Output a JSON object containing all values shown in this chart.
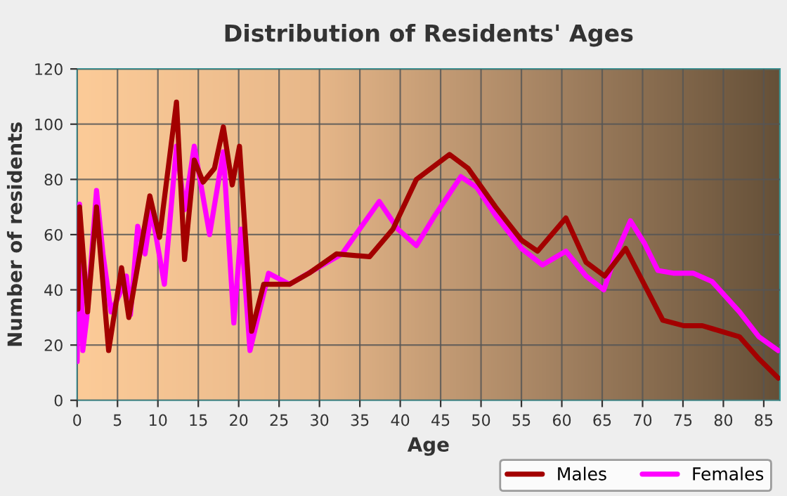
{
  "chart_data": {
    "type": "line",
    "title": "Distribution of Residents' Ages",
    "xlabel": "Age",
    "ylabel": "Number of residents",
    "xlim": [
      0,
      87
    ],
    "xticks": [
      0,
      5,
      10,
      15,
      20,
      25,
      30,
      35,
      40,
      45,
      50,
      55,
      60,
      65,
      70,
      75,
      80,
      85
    ],
    "ylim": [
      0,
      120
    ],
    "yticks": [
      0,
      20,
      40,
      60,
      80,
      100,
      120
    ],
    "grid": true,
    "legend": "bottom right",
    "series": [
      {
        "name": "Males",
        "color": "#a30000",
        "x": [
          0,
          0.1,
          0.3,
          1.3,
          2.4,
          3.9,
          5.5,
          6.4,
          9,
          10.2,
          12.3,
          13.3,
          14.5,
          15.6,
          17,
          18.1,
          19.2,
          20.1,
          21.6,
          23.1,
          26.3,
          28.7,
          32.1,
          36.2,
          39.1,
          42,
          46.1,
          48.4,
          51.8,
          55,
          57,
          60.5,
          63,
          65.3,
          67.9,
          70.2,
          72.5,
          75.1,
          77.4,
          79.7,
          82,
          84.4,
          86.8
        ],
        "values": [
          51,
          33,
          70,
          32,
          70,
          18,
          48,
          30,
          74,
          59,
          108,
          51,
          87,
          79,
          84,
          99,
          78,
          92,
          25,
          42,
          42,
          46,
          53,
          52,
          62,
          80,
          89,
          84,
          70,
          58,
          54,
          66,
          50,
          45,
          55,
          42,
          29,
          27,
          27,
          25,
          23,
          15,
          8
        ]
      },
      {
        "name": "Females",
        "color": "#ff00ff",
        "x": [
          0,
          0.3,
          0.7,
          1.2,
          2.4,
          3.2,
          4.2,
          5.2,
          6.1,
          6.6,
          7.5,
          8.4,
          9.2,
          10.8,
          12.3,
          13.3,
          14.5,
          16.4,
          18.1,
          19.4,
          20.3,
          21.4,
          23.7,
          26.3,
          29.8,
          32.8,
          37.4,
          39.7,
          42,
          44.3,
          47.5,
          49.5,
          51.8,
          55,
          57.6,
          60.5,
          63,
          65.2,
          66.7,
          68.5,
          70.2,
          71.9,
          73.9,
          76.3,
          78.6,
          82,
          84.4,
          86.8
        ],
        "values": [
          14,
          71,
          18,
          30,
          76,
          53,
          32,
          38,
          45,
          31,
          63,
          53,
          69,
          42,
          92,
          69,
          92,
          60,
          90,
          28,
          62,
          18,
          46,
          42,
          48,
          53,
          72,
          62,
          56,
          67,
          81,
          77,
          67,
          55,
          49,
          54,
          45,
          40,
          53,
          65,
          57,
          47,
          46,
          46,
          43,
          32,
          23,
          18
        ]
      }
    ]
  }
}
